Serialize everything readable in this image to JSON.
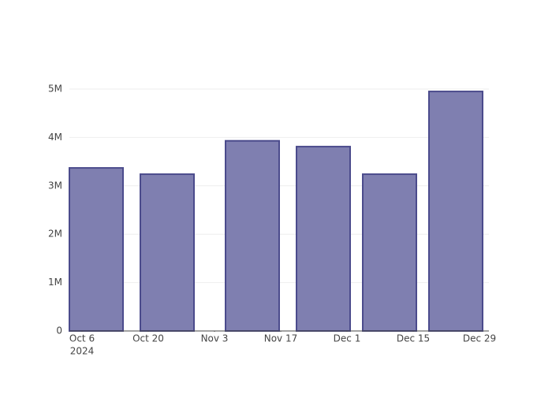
{
  "chart_data": {
    "type": "bar",
    "x": [
      "2024-10-09",
      "2024-10-24",
      "2024-11-11",
      "2024-11-26",
      "2024-12-10",
      "2024-12-24"
    ],
    "values": [
      3370000,
      3240000,
      3930000,
      3810000,
      3240000,
      4950000
    ],
    "color": "#7f7fb0",
    "edge_color": "#4b4b8c",
    "xlim": [
      "2024-10-03T08:00",
      "2024-12-31T00:00"
    ],
    "xticks": [
      {
        "value": "2024-10-06",
        "label": "Oct 6"
      },
      {
        "value": "2024-10-20",
        "label": "Oct 20"
      },
      {
        "value": "2024-11-03",
        "label": "Nov 3"
      },
      {
        "value": "2024-11-17",
        "label": "Nov 17"
      },
      {
        "value": "2024-12-01",
        "label": "Dec 1"
      },
      {
        "value": "2024-12-15",
        "label": "Dec 15"
      },
      {
        "value": "2024-12-29",
        "label": "Dec 29"
      }
    ],
    "x_year_label": "2024",
    "ylim": [
      0,
      5000000
    ],
    "yticks": [
      0,
      {
        "value": 1000000,
        "label": "1M"
      },
      {
        "value": 2000000,
        "label": "2M"
      },
      {
        "value": 3000000,
        "label": "3M"
      },
      {
        "value": 4000000,
        "label": "4M"
      },
      {
        "value": 5000000,
        "label": "5M"
      }
    ],
    "grid": true
  }
}
